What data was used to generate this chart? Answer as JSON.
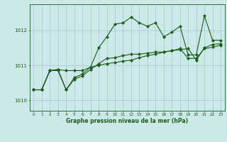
{
  "title": "Graphe pression niveau de la mer (hPa)",
  "background_color": "#cce8e8",
  "line_color": "#1a5c1a",
  "grid_color": "#9ecece",
  "ylim": [
    1009.7,
    1012.75
  ],
  "yticks": [
    1010,
    1011,
    1012
  ],
  "x_labels": [
    "0",
    "1",
    "2",
    "3",
    "4",
    "5",
    "6",
    "7",
    "8",
    "9",
    "10",
    "11",
    "12",
    "13",
    "14",
    "15",
    "16",
    "17",
    "18",
    "19",
    "20",
    "21",
    "22",
    "23"
  ],
  "s1": [
    1010.3,
    1010.3,
    1010.85,
    1010.85,
    1010.3,
    1010.65,
    1010.75,
    1010.95,
    1011.5,
    1011.82,
    1012.18,
    1012.22,
    1012.38,
    1012.22,
    1012.12,
    1012.22,
    1011.82,
    1011.95,
    1012.12,
    1011.3,
    1011.3,
    1012.42,
    1011.72,
    1011.72
  ],
  "s2": [
    1010.3,
    1010.3,
    1010.85,
    1010.88,
    1010.85,
    1010.85,
    1010.85,
    1010.95,
    1011.0,
    1011.05,
    1011.08,
    1011.12,
    1011.15,
    1011.22,
    1011.28,
    1011.32,
    1011.38,
    1011.42,
    1011.45,
    1011.48,
    1011.15,
    1011.5,
    1011.6,
    1011.62
  ],
  "s3": [
    1010.3,
    1010.3,
    1010.85,
    1010.88,
    1010.3,
    1010.6,
    1010.7,
    1010.88,
    1011.05,
    1011.2,
    1011.22,
    1011.28,
    1011.32,
    1011.32,
    1011.35,
    1011.38,
    1011.38,
    1011.42,
    1011.48,
    1011.2,
    1011.2,
    1011.48,
    1011.52,
    1011.58
  ]
}
